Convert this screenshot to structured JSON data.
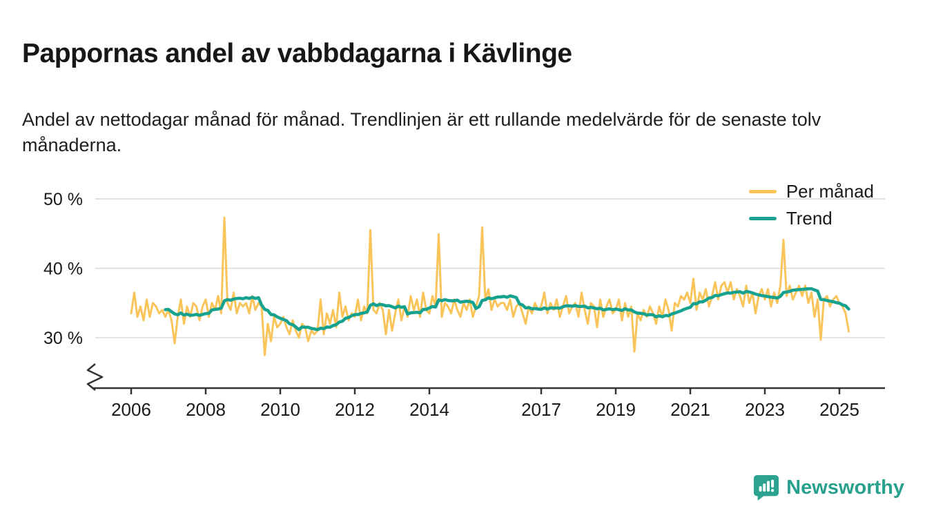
{
  "header": {
    "title": "Pappornas andel av vabbdagarna i Kävlinge",
    "subtitle": "Andel av nettodagar månad för månad. Trendlinjen är ett rullande medelvärde för de senaste tolv månaderna."
  },
  "footer": {
    "brand": "Newsworthy",
    "brand_color": "#27a08d",
    "icon_color": "#2ba390"
  },
  "chart_data": {
    "type": "line",
    "title": "Pappornas andel av vabbdagarna i Kävlinge",
    "unit": "%",
    "x_start_year": 2006,
    "x_interval": "monthly",
    "x_end": "2025-04",
    "x_tick_labels": [
      "2006",
      "2008",
      "2010",
      "2012",
      "2014",
      "2017",
      "2019",
      "2021",
      "2023",
      "2025"
    ],
    "x_tick_years": [
      2006,
      2008,
      2010,
      2012,
      2014,
      2017,
      2019,
      2021,
      2023,
      2025
    ],
    "y_ticks": [
      {
        "value": 30,
        "label": "30 %"
      },
      {
        "value": 40,
        "label": "40 %"
      },
      {
        "value": 50,
        "label": "50 %"
      }
    ],
    "ylim": [
      27,
      51
    ],
    "axis_break": true,
    "grid": "horizontal",
    "legend_position": "top-right",
    "grid_color": "#d8d8d8",
    "axis_color": "#333333",
    "series": [
      {
        "name": "Per månad",
        "color": "#f9c45a",
        "values": [
          33.5,
          36.5,
          33.0,
          34.5,
          32.5,
          35.5,
          33.0,
          35.0,
          34.5,
          33.5,
          34.0,
          33.0,
          34.0,
          32.5,
          29.2,
          33.0,
          35.5,
          32.0,
          34.5,
          33.0,
          35.0,
          34.5,
          32.5,
          34.5,
          35.5,
          33.0,
          35.0,
          34.0,
          36.0,
          33.5,
          47.3,
          35.0,
          34.0,
          36.5,
          33.5,
          35.0,
          34.5,
          35.0,
          33.5,
          36.0,
          34.0,
          35.0,
          34.5,
          27.5,
          32.0,
          29.5,
          33.0,
          31.5,
          32.0,
          33.0,
          31.5,
          30.5,
          32.5,
          31.0,
          30.0,
          32.0,
          31.5,
          29.5,
          31.0,
          30.5,
          31.0,
          35.5,
          30.5,
          33.5,
          32.0,
          34.0,
          31.5,
          36.5,
          33.0,
          34.5,
          32.5,
          33.5,
          33.0,
          35.5,
          32.5,
          34.5,
          33.5,
          45.5,
          34.0,
          33.5,
          35.0,
          34.0,
          30.5,
          34.0,
          31.0,
          33.5,
          35.5,
          32.5,
          34.5,
          33.0,
          36.0,
          34.0,
          35.5,
          33.0,
          36.5,
          34.0,
          33.5,
          36.0,
          34.5,
          44.9,
          33.0,
          35.0,
          34.5,
          33.5,
          35.5,
          34.0,
          33.0,
          35.0,
          34.0,
          35.5,
          33.0,
          34.5,
          36.0,
          45.9,
          35.5,
          37.0,
          34.0,
          35.5,
          34.5,
          35.0,
          35.0,
          34.0,
          35.5,
          33.0,
          34.5,
          35.0,
          33.5,
          32.0,
          34.5,
          33.5,
          35.0,
          34.0,
          34.5,
          36.5,
          33.5,
          35.0,
          34.0,
          35.5,
          33.0,
          34.5,
          36.0,
          33.5,
          34.5,
          35.0,
          33.0,
          36.5,
          34.0,
          32.0,
          35.0,
          34.5,
          31.5,
          35.5,
          33.0,
          34.5,
          35.5,
          33.5,
          34.0,
          35.5,
          32.5,
          35.0,
          33.0,
          34.5,
          28.0,
          33.5,
          32.5,
          34.0,
          33.0,
          34.5,
          33.5,
          32.0,
          34.5,
          33.0,
          35.5,
          34.0,
          31.0,
          35.0,
          34.5,
          36.0,
          35.5,
          36.5,
          35.0,
          38.5,
          34.0,
          36.5,
          35.5,
          37.0,
          34.5,
          36.0,
          38.0,
          35.5,
          37.5,
          38.0,
          36.5,
          38.0,
          35.5,
          37.0,
          36.0,
          34.5,
          37.5,
          35.0,
          36.5,
          33.5,
          36.0,
          37.0,
          35.5,
          37.0,
          34.5,
          36.5,
          35.0,
          37.5,
          44.1,
          36.0,
          37.5,
          35.5,
          36.5,
          37.5,
          36.0,
          37.5,
          35.0,
          36.5,
          33.0,
          35.5,
          29.7,
          35.5,
          36.0,
          34.5,
          35.5,
          36.0,
          35.0,
          34.5,
          33.5,
          30.9
        ]
      },
      {
        "name": "Trend",
        "color": "#17a28f",
        "derived": "rolling_mean_12_months_of_series_0"
      }
    ]
  }
}
